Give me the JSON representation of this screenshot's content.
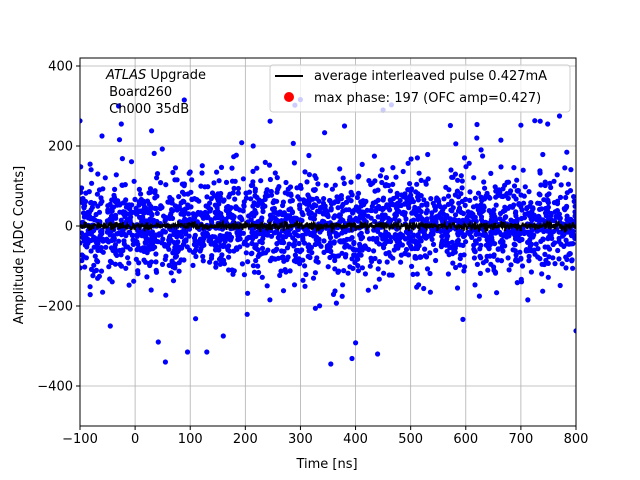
{
  "chart_data": {
    "type": "scatter",
    "xlabel": "Time [ns]",
    "ylabel": "Amplitude [ADC Counts]",
    "xlim": [
      -100,
      800
    ],
    "ylim": [
      -500,
      420
    ],
    "xticks": [
      -100,
      0,
      100,
      200,
      300,
      400,
      500,
      600,
      700,
      800
    ],
    "yticks": [
      -400,
      -200,
      0,
      200,
      400
    ],
    "xtick_labels": [
      "−100",
      "0",
      "100",
      "200",
      "300",
      "400",
      "500",
      "600",
      "700",
      "800"
    ],
    "ytick_labels": [
      "−400",
      "−200",
      "0",
      "200",
      "400"
    ],
    "grid": true,
    "legend_position": "top-right",
    "annotation": {
      "line1_italic": "ATLAS",
      "line1_rest": " Upgrade",
      "line2": " Board260",
      "line3": " Ch000 35dB"
    },
    "legend": [
      {
        "label": "average interleaved pulse 0.427mA",
        "color": "#000000",
        "marker": "line"
      },
      {
        "label": "max phase: 197 (OFC amp=0.427)",
        "color": "#ff0000",
        "marker": "dot"
      }
    ],
    "series": [
      {
        "name": "average interleaved pulse 0.427mA",
        "color": "#000000",
        "description": "flat black trace near zero",
        "y_mean": 0,
        "y_spread": 8
      },
      {
        "color": "#0000ff",
        "description": "dense noise band",
        "y_core_range": [
          -100,
          100
        ],
        "y_outlier_range": [
          -345,
          315
        ],
        "outliers": [
          {
            "x": -100,
            "y": 263
          },
          {
            "x": -60,
            "y": 225
          },
          {
            "x": -45,
            "y": -250
          },
          {
            "x": -30,
            "y": 300
          },
          {
            "x": -25,
            "y": 255
          },
          {
            "x": 30,
            "y": 238
          },
          {
            "x": 42,
            "y": -290
          },
          {
            "x": 55,
            "y": -340
          },
          {
            "x": 95,
            "y": -315
          },
          {
            "x": 130,
            "y": -315
          },
          {
            "x": 160,
            "y": -275
          },
          {
            "x": 245,
            "y": 262
          },
          {
            "x": 290,
            "y": 302
          },
          {
            "x": 300,
            "y": 316
          },
          {
            "x": 355,
            "y": -345
          },
          {
            "x": 380,
            "y": 250
          },
          {
            "x": 400,
            "y": -292
          },
          {
            "x": 440,
            "y": -320
          },
          {
            "x": 450,
            "y": 290
          },
          {
            "x": 465,
            "y": 303
          },
          {
            "x": 620,
            "y": 220
          },
          {
            "x": 700,
            "y": 252
          },
          {
            "x": 735,
            "y": 262
          },
          {
            "x": 770,
            "y": 275
          },
          {
            "x": 800,
            "y": -262
          }
        ]
      },
      {
        "name": "max phase: 197 (OFC amp=0.427)",
        "color": "#ff0000",
        "description": "single red max-phase point, hidden by the blue band"
      }
    ]
  }
}
